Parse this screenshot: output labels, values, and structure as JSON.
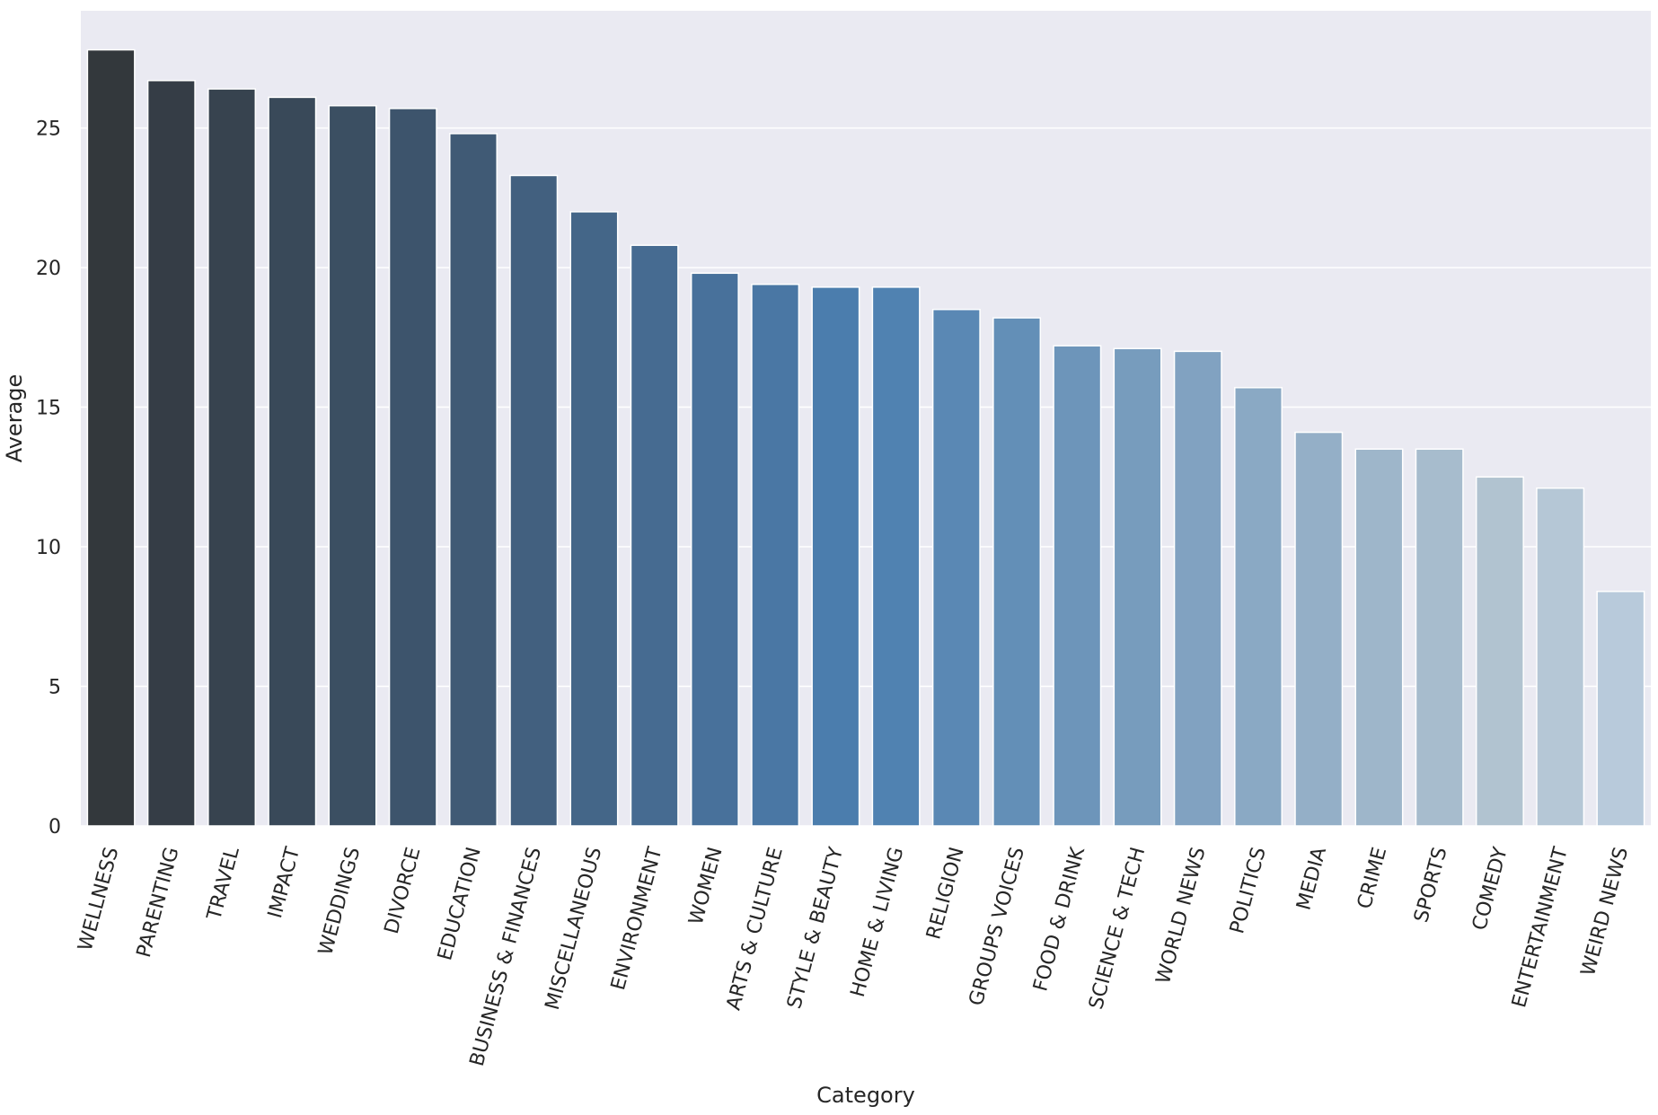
{
  "chart_data": {
    "type": "bar",
    "title": "",
    "xlabel": "Category",
    "ylabel": "Average",
    "ylim": [
      0,
      29.2
    ],
    "yticks": [
      0,
      5,
      10,
      15,
      20,
      25
    ],
    "ytick_labels": [
      "0",
      "5",
      "10",
      "15",
      "20",
      "25"
    ],
    "grid": true,
    "legend": "none",
    "categories": [
      "WELLNESS",
      "PARENTING",
      "TRAVEL",
      "IMPACT",
      "WEDDINGS",
      "DIVORCE",
      "EDUCATION",
      "BUSINESS & FINANCES",
      "MISCELLANEOUS",
      "ENVIRONMENT",
      "WOMEN",
      "ARTS & CULTURE",
      "STYLE & BEAUTY",
      "HOME & LIVING",
      "RELIGION",
      "GROUPS VOICES",
      "FOOD & DRINK",
      "SCIENCE & TECH",
      "WORLD NEWS",
      "POLITICS",
      "MEDIA",
      "CRIME",
      "SPORTS",
      "COMEDY",
      "ENTERTAINMENT",
      "WEIRD NEWS"
    ],
    "values": [
      27.8,
      26.7,
      26.4,
      26.1,
      25.8,
      25.7,
      24.8,
      23.3,
      22.0,
      20.8,
      19.8,
      19.4,
      19.3,
      19.3,
      18.5,
      18.2,
      17.2,
      17.1,
      17.0,
      15.7,
      14.1,
      13.5,
      13.5,
      12.5,
      12.1,
      8.4
    ],
    "colors": [
      "#33383c",
      "#353d46",
      "#37434f",
      "#394959",
      "#3b4f62",
      "#3d546c",
      "#405a75",
      "#42607f",
      "#446688",
      "#466b91",
      "#48719b",
      "#4a77a4",
      "#4b7dad",
      "#5082b1",
      "#5a88b4",
      "#638fb7",
      "#6d95ba",
      "#779cbd",
      "#81a2c1",
      "#8aa9c4",
      "#94afc7",
      "#9eb6ca",
      "#a7bccd",
      "#b1c3d0",
      "#b5c7d6",
      "#b8cadb"
    ]
  }
}
